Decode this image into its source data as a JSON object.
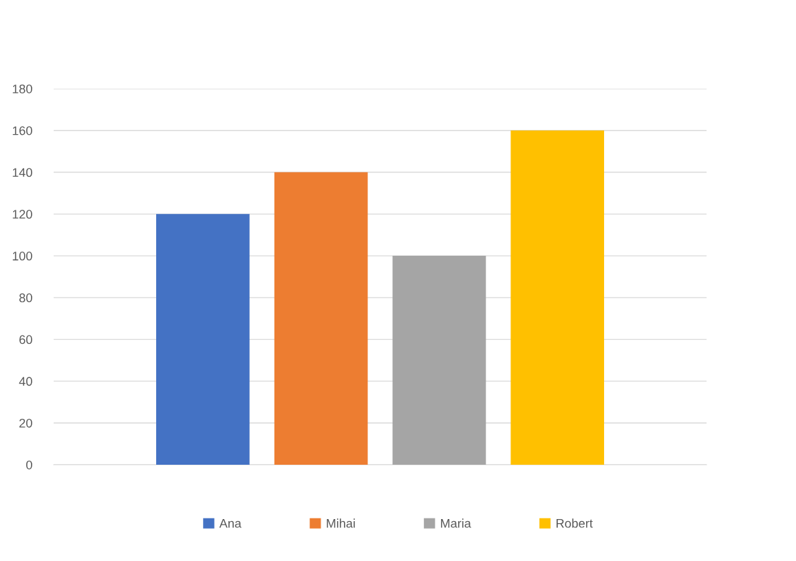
{
  "chart_data": {
    "type": "bar",
    "categories": [
      null
    ],
    "series": [
      {
        "name": "Ana",
        "color": "#4472c4",
        "values": [
          120
        ]
      },
      {
        "name": "Mihai",
        "color": "#ed7d31",
        "values": [
          140
        ]
      },
      {
        "name": "Maria",
        "color": "#a5a5a5",
        "values": [
          100
        ]
      },
      {
        "name": "Robert",
        "color": "#ffc000",
        "values": [
          160
        ]
      }
    ],
    "ylim": [
      0,
      180
    ],
    "yticks": [
      0,
      20,
      40,
      60,
      80,
      100,
      120,
      140,
      160,
      180
    ],
    "grid": "y",
    "legend": "bottom"
  }
}
